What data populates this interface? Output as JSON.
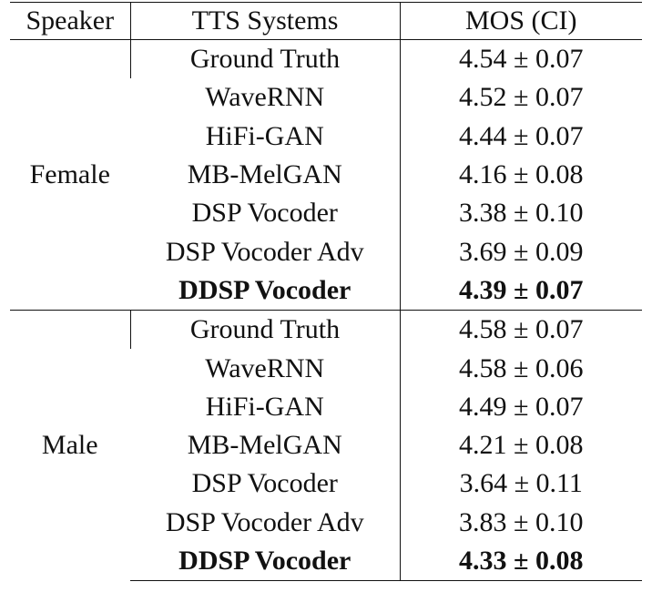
{
  "table": {
    "headers": {
      "speaker": "Speaker",
      "system": "TTS Systems",
      "mos": "MOS (CI)"
    },
    "groups": [
      {
        "speaker": "Female",
        "rows": [
          {
            "system": "Ground Truth",
            "mos": "4.54 ± 0.07"
          },
          {
            "system": "WaveRNN",
            "mos": "4.52 ± 0.07"
          },
          {
            "system": "HiFi-GAN",
            "mos": "4.44 ± 0.07"
          },
          {
            "system": "MB-MelGAN",
            "mos": "4.16 ± 0.08"
          },
          {
            "system": "DSP Vocoder",
            "mos": "3.38 ± 0.10"
          },
          {
            "system": "DSP Vocoder Adv",
            "mos": "3.69 ± 0.09"
          },
          {
            "system": "DDSP Vocoder",
            "mos": "4.39 ± 0.07",
            "bold": true
          }
        ]
      },
      {
        "speaker": "Male",
        "rows": [
          {
            "system": "Ground Truth",
            "mos": "4.58 ± 0.07"
          },
          {
            "system": "WaveRNN",
            "mos": "4.58 ± 0.06"
          },
          {
            "system": "HiFi-GAN",
            "mos": "4.49 ± 0.07"
          },
          {
            "system": "MB-MelGAN",
            "mos": "4.21 ± 0.08"
          },
          {
            "system": "DSP Vocoder",
            "mos": "3.64 ± 0.11"
          },
          {
            "system": "DSP Vocoder Adv",
            "mos": "3.83 ± 0.10"
          },
          {
            "system": "DDSP Vocoder",
            "mos": "4.33 ± 0.08",
            "bold": true
          }
        ]
      }
    ]
  }
}
